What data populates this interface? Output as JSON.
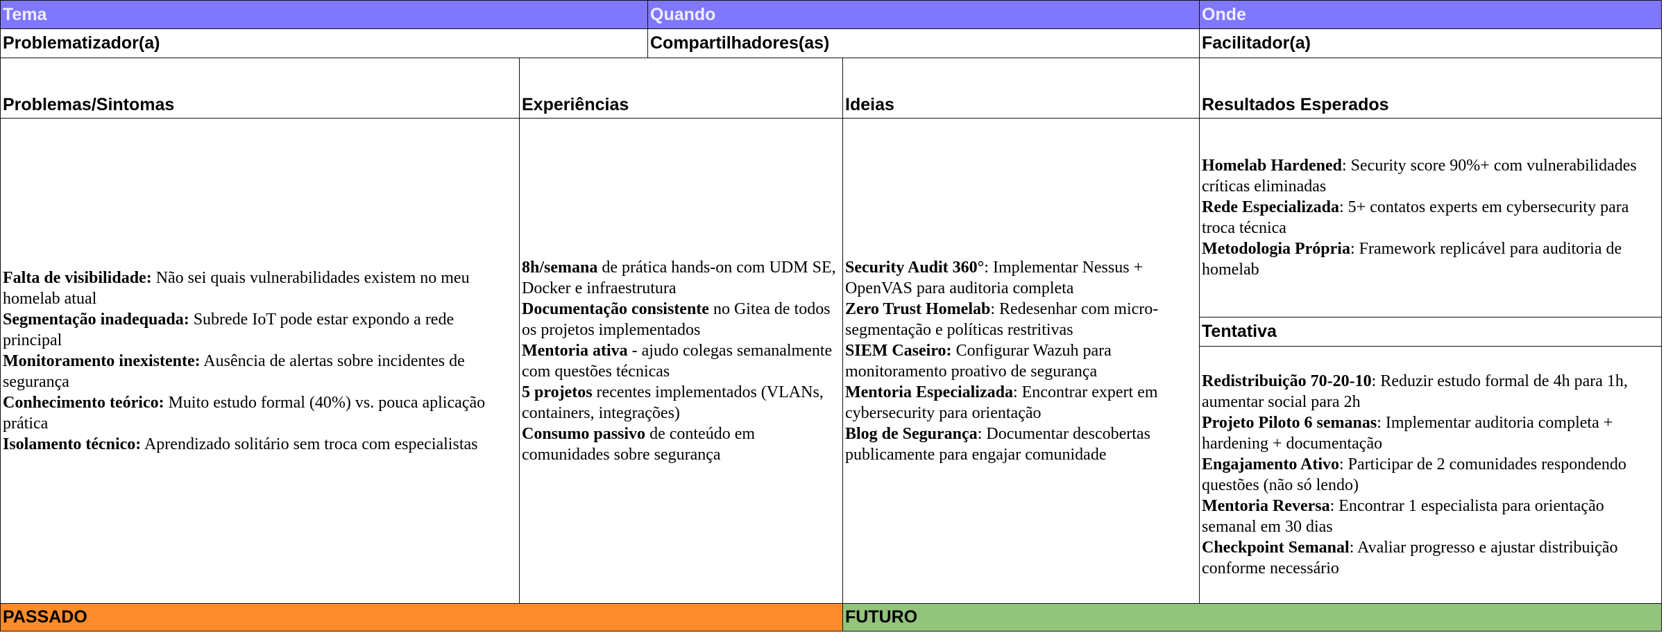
{
  "header": {
    "tema": "Tema",
    "quando": "Quando",
    "onde": "Onde"
  },
  "roles": {
    "problematizador": "Problematizador(a)",
    "compartilhadores": "Compartilhadores(as)",
    "facilitador": "Facilitador(a)"
  },
  "columns": {
    "problemas": "Problemas/Sintomas",
    "experiencias": "Experiências",
    "ideias": "Ideias",
    "resultados": "Resultados Esperados",
    "tentativa": "Tentativa"
  },
  "problemas": [
    {
      "b": "Falta de visibilidade:",
      "t": " Não sei quais vulnerabilidades existem no meu homelab atual"
    },
    {
      "b": "Segmentação inadequada:",
      "t": " Subrede IoT pode estar expondo a rede principal"
    },
    {
      "b": "Monitoramento inexistente:",
      "t": " Ausência de alertas sobre incidentes de segurança"
    },
    {
      "b": "Conhecimento teórico:",
      "t": " Muito estudo formal (40%) vs. pouca aplicação prática"
    },
    {
      "b": "Isolamento técnico:",
      "t": " Aprendizado solitário sem troca com especialistas"
    }
  ],
  "experiencias": [
    {
      "b": "8h/semana",
      "t": " de prática hands-on com UDM SE, Docker e infraestrutura"
    },
    {
      "b": "Documentação consistente",
      "t": " no Gitea de todos os projetos implementados"
    },
    {
      "b": "Mentoria ativa",
      "t": " - ajudo colegas semanalmente com questões técnicas"
    },
    {
      "b": "5 projetos",
      "t": " recentes implementados (VLANs, containers, integrações)"
    },
    {
      "b": "Consumo passivo",
      "t": " de conteúdo em comunidades sobre segurança"
    }
  ],
  "ideias": [
    {
      "b": "Security Audit 360°",
      "t": ": Implementar Nessus + OpenVAS para auditoria completa"
    },
    {
      "b": "Zero Trust Homelab",
      "t": ": Redesenhar com micro-segmentação e políticas restritivas"
    },
    {
      "b": "SIEM Caseiro:",
      "t": " Configurar Wazuh para monitoramento proativo de segurança"
    },
    {
      "b": "Mentoria Especializada",
      "t": ": Encontrar expert em cybersecurity para orientação"
    },
    {
      "b": "Blog de Segurança",
      "t": ": Documentar descobertas publicamente para engajar comunidade"
    }
  ],
  "resultados": [
    {
      "b": "Homelab Hardened",
      "t": ": Security score 90%+ com vulnerabilidades críticas eliminadas"
    },
    {
      "b": "Rede Especializada",
      "t": ": 5+ contatos experts em cybersecurity para troca técnica"
    },
    {
      "b": "Metodologia Própria",
      "t": ": Framework replicável para auditoria de homelab"
    }
  ],
  "tentativa": [
    {
      "b": "Redistribuição 70-20-10",
      "t": ": Reduzir estudo formal de 4h para 1h, aumentar social para 2h"
    },
    {
      "b": "Projeto Piloto 6 semanas",
      "t": ": Implementar auditoria completa + hardening + documentação"
    },
    {
      "b": "Engajamento Ativo",
      "t": ": Participar de 2 comunidades respondendo questões (não só lendo)"
    },
    {
      "b": "Mentoria Reversa",
      "t": ": Encontrar 1 especialista para orientação semanal em 30 dias"
    },
    {
      "b": "Checkpoint Semanal",
      "t": ": Avaliar progresso e ajustar distribuição conforme necessário"
    }
  ],
  "footer": {
    "passado": "PASSADO",
    "futuro": "FUTURO"
  },
  "colors": {
    "header": "#7f77fc",
    "passado": "#fe8c2a",
    "futuro": "#93c47d"
  }
}
